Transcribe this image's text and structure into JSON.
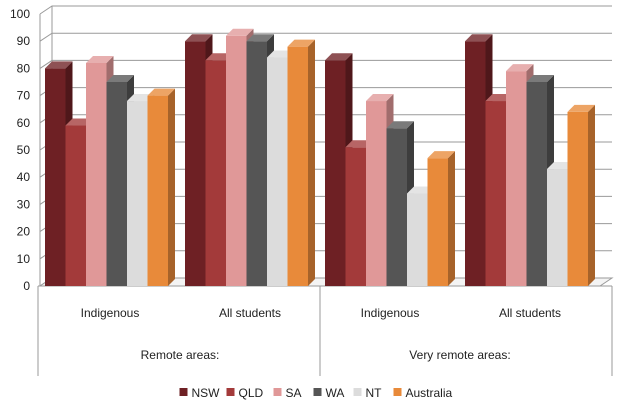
{
  "chart_data": {
    "type": "bar",
    "groups": [
      {
        "label": "Remote areas:",
        "categories": [
          "Indigenous",
          "All students"
        ]
      },
      {
        "label": "Very remote areas:",
        "categories": [
          "Indigenous",
          "All students"
        ]
      }
    ],
    "categories": [
      "Indigenous",
      "All students",
      "Indigenous",
      "All students"
    ],
    "series": [
      {
        "name": "NSW",
        "color": "#6e2024",
        "values": [
          80,
          90,
          83,
          90
        ]
      },
      {
        "name": "QLD",
        "color": "#a33a3a",
        "values": [
          59,
          83,
          51,
          68
        ]
      },
      {
        "name": "SA",
        "color": "#e09898",
        "values": [
          82,
          92,
          68,
          79
        ]
      },
      {
        "name": "WA",
        "color": "#555555",
        "values": [
          75,
          90,
          58,
          75
        ]
      },
      {
        "name": "NT",
        "color": "#dcdcdc",
        "values": [
          68,
          84,
          34,
          43
        ]
      },
      {
        "name": "Australia",
        "color": "#e88a3a",
        "values": [
          70,
          88,
          47,
          64
        ]
      }
    ],
    "ylim": [
      0,
      100
    ],
    "yticks": [
      0,
      10,
      20,
      30,
      40,
      50,
      60,
      70,
      80,
      90,
      100
    ],
    "grid": true,
    "legend": "bottom",
    "three_d": true
  }
}
